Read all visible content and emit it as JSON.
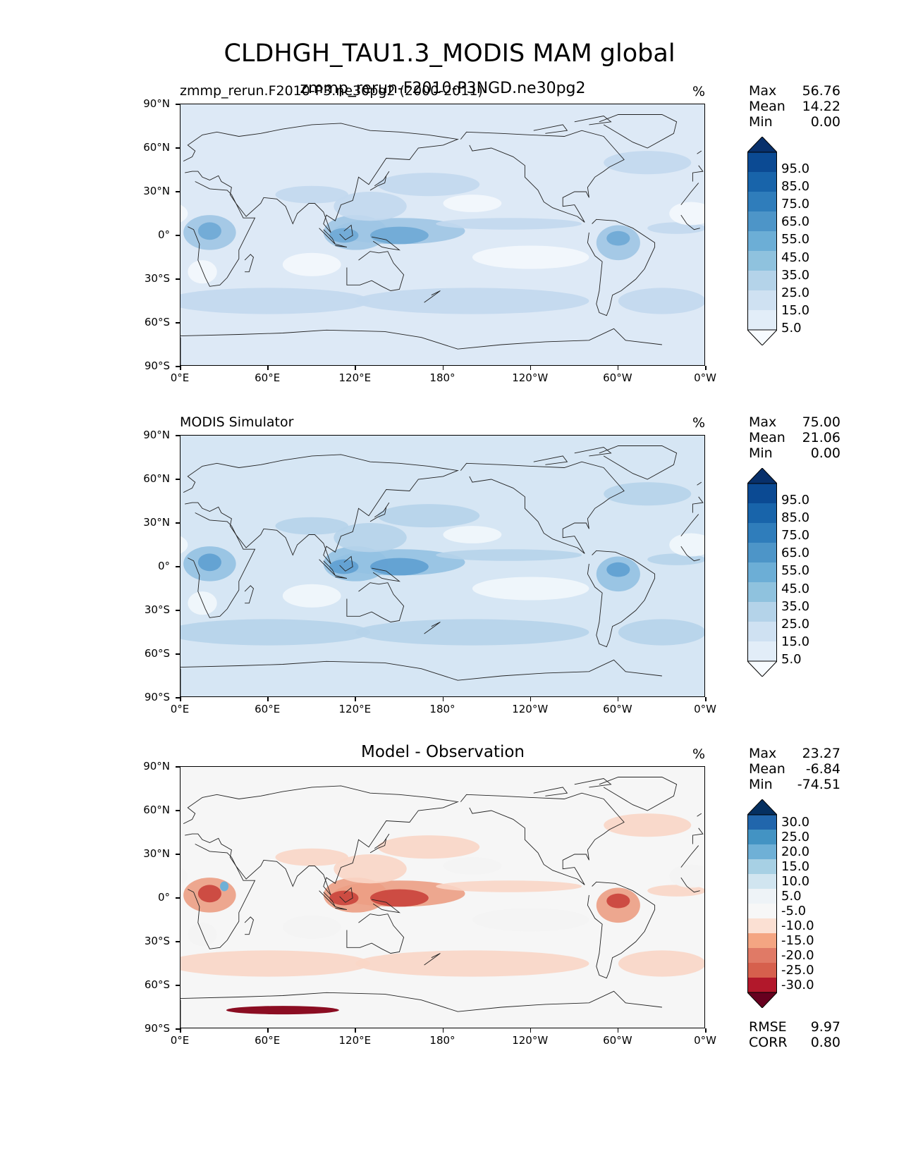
{
  "figure": {
    "title": "CLDHGH_TAU1.3_MODIS MAM global"
  },
  "axes": {
    "lat_labels": [
      "90°N",
      "60°N",
      "30°N",
      "0°",
      "30°S",
      "60°S",
      "90°S"
    ],
    "lon_labels": [
      "0°E",
      "60°E",
      "120°E",
      "180°",
      "120°W",
      "60°W",
      "0°W"
    ]
  },
  "panels": [
    {
      "title_left": "zmmp_rerun.F2010-P3.ne30pg2 (2000-2011)",
      "title_overlay": "zmmp_rerun-F2010-P3NGD.ne30pg2",
      "units": "%",
      "stats": {
        "max_label": "Max",
        "max": "56.76",
        "mean_label": "Mean",
        "mean": "14.22",
        "min_label": "Min",
        "min": "0.00"
      },
      "colorbar_labels": [
        "95.0",
        "85.0",
        "75.0",
        "65.0",
        "55.0",
        "45.0",
        "35.0",
        "25.0",
        "15.0",
        "5.0"
      ],
      "colorbar_colors": [
        "#08306b",
        "#0b4a93",
        "#1864aa",
        "#2f7dbb",
        "#4d95c8",
        "#6caed6",
        "#8fc2de",
        "#b4d3e9",
        "#cfe1f2",
        "#e2edf8",
        "#f7fbff"
      ],
      "colors": {
        "ocean": "#dde9f6",
        "band": "#c2d8ee",
        "strong": "#9fc5e4",
        "core": "#6ea9d5",
        "dry": "#f4f8fd"
      }
    },
    {
      "title_left": "MODIS Simulator",
      "units": "%",
      "stats": {
        "max_label": "Max",
        "max": "75.00",
        "mean_label": "Mean",
        "mean": "21.06",
        "min_label": "Min",
        "min": "0.00"
      },
      "colorbar_labels": [
        "95.0",
        "85.0",
        "75.0",
        "65.0",
        "55.0",
        "45.0",
        "35.0",
        "25.0",
        "15.0",
        "5.0"
      ],
      "colorbar_colors": [
        "#08306b",
        "#0b4a93",
        "#1864aa",
        "#2f7dbb",
        "#4d95c8",
        "#6caed6",
        "#8fc2de",
        "#b4d3e9",
        "#cfe1f2",
        "#e2edf8",
        "#f7fbff"
      ],
      "colors": {
        "ocean": "#d6e6f4",
        "band": "#b6d3ea",
        "strong": "#94c1e2",
        "core": "#5e9fd0",
        "dry": "#f2f7fc"
      }
    },
    {
      "title_center": "Model - Observation",
      "units": "%",
      "stats": {
        "max_label": "Max",
        "max": "23.27",
        "mean_label": "Mean",
        "mean": "-6.84",
        "min_label": "Min",
        "min": "-74.51"
      },
      "colorbar_labels": [
        "30.0",
        "25.0",
        "20.0",
        "15.0",
        "10.0",
        "5.0",
        "-5.0",
        "-10.0",
        "-15.0",
        "-20.0",
        "-25.0",
        "-30.0"
      ],
      "colorbar_colors": [
        "#053061",
        "#2166ac",
        "#4393c3",
        "#6fb0d6",
        "#a7d0e4",
        "#d1e5f0",
        "#eef3f7",
        "#f7f7f7",
        "#fbe0d3",
        "#f4a582",
        "#e07a66",
        "#d6604d",
        "#b2182b",
        "#67001f"
      ],
      "colors": {
        "ocean": "#f6f6f6",
        "band": "#f9d6c6",
        "strong": "#ec9f84",
        "core": "#c9433b",
        "dry": "#f4f4f4"
      },
      "rmse_label": "RMSE",
      "rmse": "9.97",
      "corr_label": "CORR",
      "corr": "0.80"
    }
  ]
}
